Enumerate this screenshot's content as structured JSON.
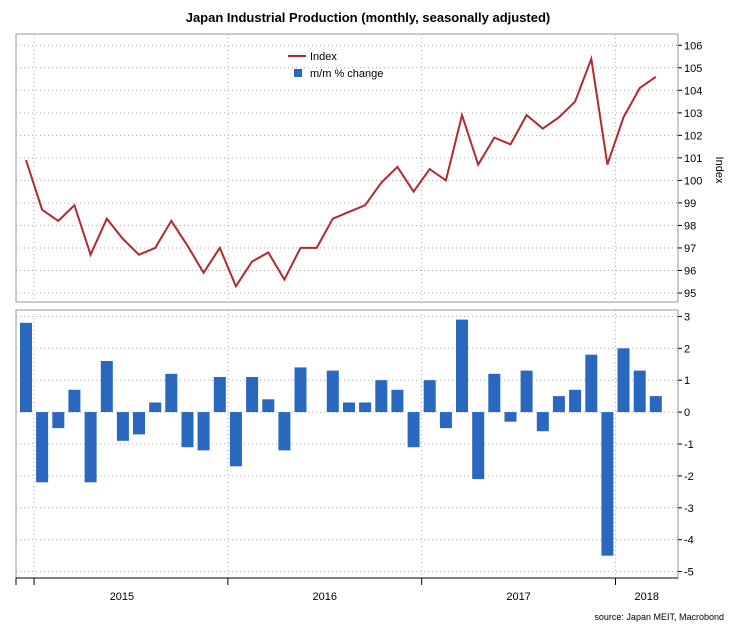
{
  "chart_data": {
    "title": "Japan Industrial Production (monthly, seasonally adjusted)",
    "source": "source: Japan MEIT, Macrobond",
    "x_labels": [
      "2015",
      "2016",
      "2017",
      "2018"
    ],
    "months": [
      "2014-12",
      "2015-01",
      "2015-02",
      "2015-03",
      "2015-04",
      "2015-05",
      "2015-06",
      "2015-07",
      "2015-08",
      "2015-09",
      "2015-10",
      "2015-11",
      "2015-12",
      "2016-01",
      "2016-02",
      "2016-03",
      "2016-04",
      "2016-05",
      "2016-06",
      "2016-07",
      "2016-08",
      "2016-09",
      "2016-10",
      "2016-11",
      "2016-12",
      "2017-01",
      "2017-02",
      "2017-03",
      "2017-04",
      "2017-05",
      "2017-06",
      "2017-07",
      "2017-08",
      "2017-09",
      "2017-10",
      "2017-11",
      "2017-12",
      "2018-01",
      "2018-02",
      "2018-03",
      "2018-04"
    ],
    "top": {
      "type": "line",
      "series": [
        {
          "name": "Index",
          "color": "#b22930",
          "values": [
            100.9,
            98.7,
            98.2,
            98.9,
            96.7,
            98.3,
            97.4,
            96.7,
            97.0,
            98.2,
            97.1,
            95.9,
            97.0,
            95.3,
            96.4,
            96.8,
            95.6,
            97.0,
            97.0,
            98.3,
            98.6,
            98.9,
            99.9,
            100.6,
            99.5,
            100.5,
            100.0,
            102.9,
            100.7,
            101.9,
            101.6,
            102.9,
            102.3,
            102.8,
            103.5,
            105.4,
            100.7,
            102.8,
            104.1,
            104.6,
            null
          ]
        }
      ],
      "ylabel": "Index",
      "ylim": [
        94.6,
        106.5
      ],
      "yticks": [
        95,
        96,
        97,
        98,
        99,
        100,
        101,
        102,
        103,
        104,
        105,
        106
      ],
      "grid": true
    },
    "bottom": {
      "type": "bar",
      "series": [
        {
          "name": "m/m % change",
          "color": "#2a67bf",
          "values": [
            2.8,
            -2.2,
            -0.5,
            0.7,
            -2.2,
            1.6,
            -0.9,
            -0.7,
            0.3,
            1.2,
            -1.1,
            -1.2,
            1.1,
            -1.7,
            1.1,
            0.4,
            -1.2,
            1.4,
            0.0,
            1.3,
            0.3,
            0.3,
            1.0,
            0.7,
            -1.1,
            1.0,
            -0.5,
            2.9,
            -2.1,
            1.2,
            -0.3,
            1.3,
            -0.6,
            0.5,
            0.7,
            1.8,
            -4.5,
            2.0,
            1.3,
            0.5,
            null
          ]
        }
      ],
      "ylim": [
        -5.2,
        3.2
      ],
      "yticks": [
        3,
        2,
        1,
        0,
        -1,
        -2,
        -3,
        -4,
        -5
      ],
      "grid": true
    },
    "legend": {
      "position": "top-center"
    }
  }
}
